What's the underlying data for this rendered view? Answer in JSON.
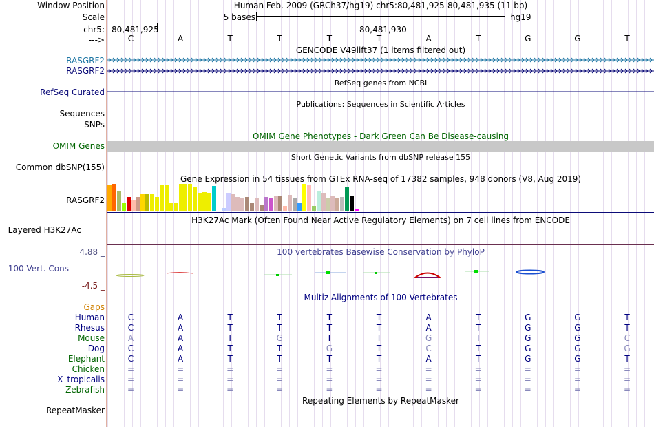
{
  "header": {
    "window_position_label": "Window Position",
    "window_position_text": "Human Feb. 2009 (GRCh37/hg19)   chr5:80,481,925-80,481,935 (11 bp)",
    "scale_label": "Scale",
    "scale_text": "5 bases",
    "scale_assembly": "hg19",
    "chr_label": "chr5:",
    "coord_left": "80,481,925",
    "coord_mid": "80,481,930",
    "strand_label": "--->"
  },
  "sequence": [
    "C",
    "A",
    "T",
    "T",
    "T",
    "T",
    "A",
    "T",
    "G",
    "G",
    "T"
  ],
  "tracks": {
    "gencode_title": "GENCODE V49lift37 (1 items filtered out)",
    "gencode_items": [
      "RASGRF2",
      "RASGRF2"
    ],
    "refseq_caption": "RefSeq genes from NCBI",
    "refseq_label": "RefSeq Curated",
    "publications_caption": "Publications: Sequences in Scientific Articles",
    "sequences_label": "Sequences",
    "snps_label": "SNPs",
    "omim_title": "OMIM Gene Phenotypes - Dark Green Can Be Disease-causing",
    "omim_label": "OMIM Genes",
    "dbsnp_caption": "Short Genetic Variants from dbSNP release 155",
    "dbsnp_label": "Common dbSNP(155)",
    "gtex_title": "Gene Expression in 54 tissues from GTEx RNA-seq of 17382 samples, 948 donors (V8, Aug 2019)",
    "gtex_label": "RASGRF2",
    "h3k27_title": "H3K27Ac Mark (Often Found Near Active Regulatory Elements) on 7 cell lines from ENCODE",
    "h3k27_label": "Layered H3K27Ac",
    "cons_title": "100 vertebrates Basewise Conservation by PhyloP",
    "cons_label": "100 Vert. Cons",
    "cons_max": "4.88 _",
    "cons_min": "-4.5 _",
    "multiz_title": "Multiz Alignments of 100 Vertebrates",
    "gaps_label": "Gaps",
    "repeat_title": "Repeating Elements by RepeatMasker",
    "repeat_label": "RepeatMasker"
  },
  "gtex_values": [
    0.98,
    1.0,
    0.75,
    0.3,
    0.52,
    0.42,
    0.52,
    0.65,
    0.62,
    0.65,
    0.52,
    0.98,
    0.95,
    0.3,
    0.3,
    1.0,
    1.0,
    1.0,
    0.9,
    0.68,
    0.7,
    0.68,
    0.92,
    0.1,
    0.12,
    0.68,
    0.62,
    0.52,
    0.48,
    0.52,
    0.3,
    0.48,
    0.25,
    0.52,
    0.5,
    0.55,
    0.55,
    0.2,
    0.6,
    0.48,
    0.3,
    1.0,
    0.98,
    0.2,
    0.72,
    0.68,
    0.48,
    0.55,
    0.48,
    0.52,
    0.88,
    0.58,
    0.1,
    0.15
  ],
  "gtex_colors": [
    "#ffaa00",
    "#ff6600",
    "#aabb66",
    "#99ff00",
    "#dd0000",
    "#ffbbaa",
    "#cc9988",
    "#ffd700",
    "#bbbb00",
    "#eeee00",
    "#eeee00",
    "#eeee00",
    "#eeee00",
    "#eeee00",
    "#eeee00",
    "#eeee00",
    "#eeee00",
    "#eeee00",
    "#eeee00",
    "#eeee00",
    "#eeee00",
    "#eeee00",
    "#00cccc",
    "#ffffff",
    "#bbccff",
    "#ccccff",
    "#ddbbbb",
    "#ddbbbb",
    "#ddbbbb",
    "#aa8877",
    "#aa8877",
    "#ddbbbb",
    "#aa8877",
    "#bb77cc",
    "#cc55cc",
    "#ddbbbb",
    "#aa8877",
    "#ffbbaa",
    "#ddbbbb",
    "#aaaaaa",
    "#3399ff",
    "#ffff00",
    "#ffbbbb",
    "#99cc66",
    "#bbeedd",
    "#ddbbbb",
    "#ccccaa",
    "#ddbbbb",
    "#ccaa99",
    "#bbbbbb",
    "#009955",
    "#000000",
    "#ff00ff",
    "#ffffff"
  ],
  "species": [
    {
      "name": "Human",
      "color": "#000080",
      "bases": [
        "C",
        "A",
        "T",
        "T",
        "T",
        "T",
        "A",
        "T",
        "G",
        "G",
        "T"
      ],
      "match": [
        1,
        1,
        1,
        1,
        1,
        1,
        1,
        1,
        1,
        1,
        1
      ]
    },
    {
      "name": "Rhesus",
      "color": "#000080",
      "bases": [
        "C",
        "A",
        "T",
        "T",
        "T",
        "T",
        "A",
        "T",
        "G",
        "G",
        "T"
      ],
      "match": [
        1,
        1,
        1,
        1,
        1,
        1,
        1,
        1,
        1,
        1,
        1
      ]
    },
    {
      "name": "Mouse",
      "color": "#006400",
      "bases": [
        "A",
        "A",
        "T",
        "G",
        "T",
        "T",
        "G",
        "T",
        "G",
        "G",
        "C"
      ],
      "match": [
        0,
        1,
        1,
        0,
        1,
        1,
        0,
        1,
        1,
        1,
        0
      ]
    },
    {
      "name": "Dog",
      "color": "#000080",
      "bases": [
        "C",
        "A",
        "T",
        "T",
        "G",
        "T",
        "C",
        "T",
        "G",
        "G",
        "G"
      ],
      "match": [
        1,
        1,
        1,
        1,
        0,
        1,
        0,
        1,
        1,
        1,
        0
      ]
    },
    {
      "name": "Elephant",
      "color": "#006400",
      "bases": [
        "C",
        "A",
        "T",
        "T",
        "T",
        "T",
        "A",
        "T",
        "G",
        "G",
        "T"
      ],
      "match": [
        1,
        1,
        1,
        1,
        1,
        1,
        1,
        1,
        1,
        1,
        1
      ]
    },
    {
      "name": "Chicken",
      "color": "#006400",
      "bases": [
        "=",
        "=",
        "=",
        "=",
        "=",
        "=",
        "=",
        "=",
        "=",
        "=",
        "="
      ],
      "match": [
        2,
        2,
        2,
        2,
        2,
        2,
        2,
        2,
        2,
        2,
        2
      ]
    },
    {
      "name": "X_tropicalis",
      "color": "#000080",
      "bases": [
        "=",
        "=",
        "=",
        "=",
        "=",
        "=",
        "=",
        "=",
        "=",
        "=",
        "="
      ],
      "match": [
        2,
        2,
        2,
        2,
        2,
        2,
        2,
        2,
        2,
        2,
        2
      ]
    },
    {
      "name": "Zebrafish",
      "color": "#006400",
      "bases": [
        "=",
        "=",
        "=",
        "=",
        "=",
        "=",
        "=",
        "=",
        "=",
        "=",
        "="
      ],
      "match": [
        2,
        2,
        2,
        2,
        2,
        2,
        2,
        2,
        2,
        2,
        2
      ]
    }
  ],
  "colors": {
    "gencode": "#1f77a4",
    "refseq": "#0c0c78",
    "omim_label": "#006400",
    "omim_bar": "#c8c8c8",
    "cons_label": "#404090",
    "cons_max": "#505080",
    "cons_min": "#7a2020",
    "gaps": "#d08000",
    "grid": "#e6ddee",
    "mismatch": "#8888bb",
    "blue_dark": "#000080",
    "green_dark": "#006400"
  }
}
